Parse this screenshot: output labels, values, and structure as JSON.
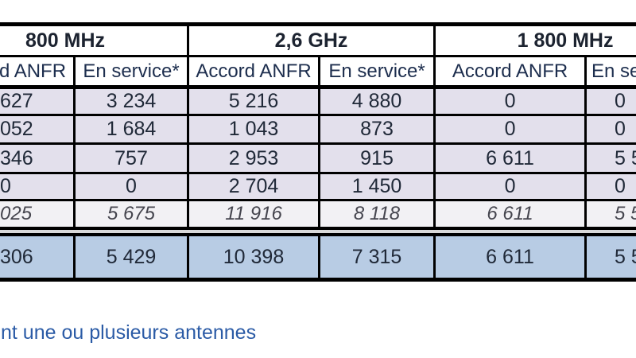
{
  "table": {
    "bands": [
      {
        "label": "800 MHz"
      },
      {
        "label": "2,6 GHz"
      },
      {
        "label": "1 800 MHz"
      }
    ],
    "columns": [
      "d ANFR",
      "En service*",
      "Accord ANFR",
      "En service*",
      "Accord ANFR",
      "En service*"
    ],
    "rows": [
      {
        "style": "data",
        "cells": [
          "627",
          "3 234",
          "5 216",
          "4 880",
          "0",
          "0"
        ]
      },
      {
        "style": "data",
        "cells": [
          "052",
          "1 684",
          "1 043",
          "873",
          "0",
          "0"
        ]
      },
      {
        "style": "data",
        "cells": [
          "346",
          "757",
          "2 953",
          "915",
          "6 611",
          "5 5"
        ]
      },
      {
        "style": "data",
        "cells": [
          "0",
          "0",
          "2 704",
          "1 450",
          "0",
          "0"
        ]
      },
      {
        "style": "subtotal",
        "cells": [
          "025",
          "5 675",
          "11 916",
          "8 118",
          "6 611",
          "5 5"
        ]
      }
    ],
    "total_row": {
      "cells": [
        "306",
        "5 429",
        "10 398",
        "7 315",
        "6 611",
        "5 5"
      ]
    }
  },
  "footnote": "nt une ou plusieurs antennes",
  "colors": {
    "row_background": "#e3e0ec",
    "subtotal_background": "#f2f1f4",
    "total_background": "#b8cce4",
    "separator": "#d9d9d9",
    "border": "#000000",
    "header_text": "#1d2e4e",
    "footnote_text": "#2b5ba6"
  }
}
